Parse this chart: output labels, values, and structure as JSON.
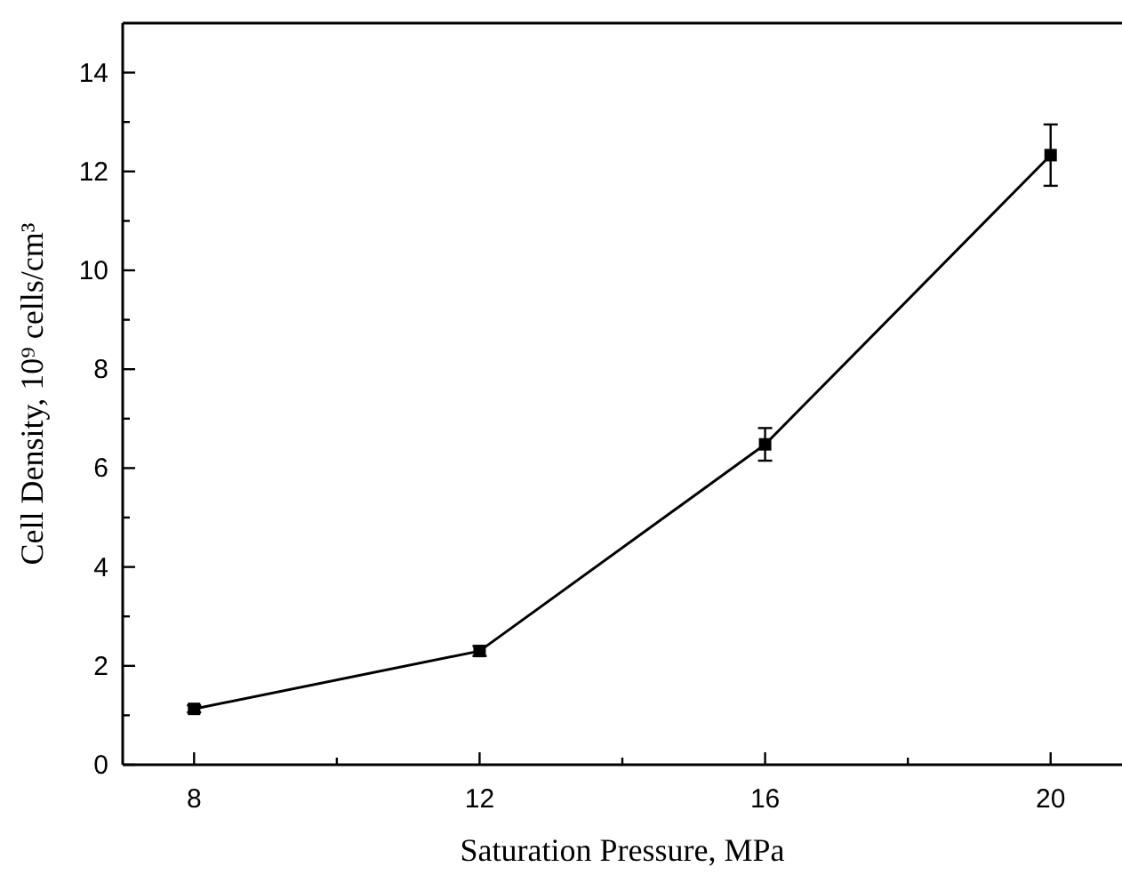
{
  "chart_data": {
    "type": "line",
    "xlabel": "Saturation Pressure, MPa",
    "ylabel": "Cell Density, 10⁹ cells/cm³",
    "x": [
      8,
      12,
      16,
      20
    ],
    "series": [
      {
        "color": "#000000",
        "values": [
          1.13,
          2.3,
          6.48,
          12.33
        ],
        "errors": [
          0.07,
          0.1,
          0.33,
          0.62
        ]
      }
    ],
    "xlim": [
      7,
      21
    ],
    "xticks": [
      8,
      {
        "value": 10,
        "label": null
      },
      12,
      {
        "value": 14,
        "label": null
      },
      16,
      {
        "value": 18,
        "label": null
      },
      20
    ],
    "ylim": [
      0,
      15
    ],
    "yticks": [
      0,
      {
        "value": 1,
        "label": null
      },
      2,
      {
        "value": 3,
        "label": null
      },
      4,
      {
        "value": 5,
        "label": null
      },
      6,
      {
        "value": 7,
        "label": null
      },
      8,
      {
        "value": 9,
        "label": null
      },
      10,
      {
        "value": 11,
        "label": null
      },
      12,
      {
        "value": 13,
        "label": null
      },
      14
    ],
    "marker": "square",
    "line_style": "solid",
    "grid": false
  }
}
